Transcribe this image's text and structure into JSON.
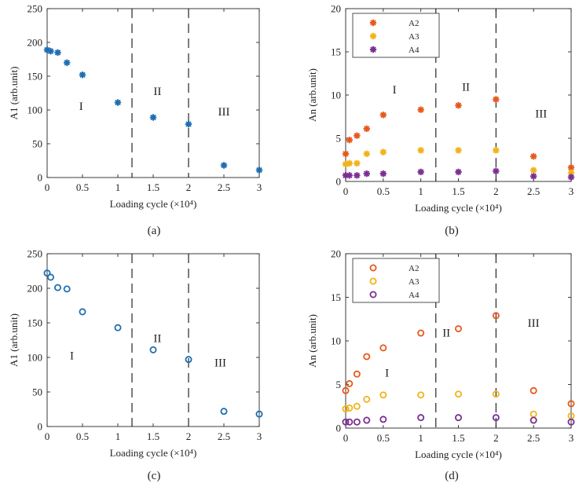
{
  "figure": {
    "panel_labels": [
      "(a)",
      "(b)",
      "(c)",
      "(d)"
    ]
  },
  "chart_data": [
    {
      "type": "scatter",
      "panel": "(a)",
      "xlabel": "Loading cycle (×10⁴)",
      "ylabel": "A1 (arb.unit)",
      "xlim": [
        0,
        3
      ],
      "ylim": [
        0,
        250
      ],
      "xticks": [
        0,
        0.5,
        1,
        1.5,
        2,
        2.5,
        3
      ],
      "xtick_labels": [
        "0",
        "0.5",
        "1",
        "1.5",
        "2",
        "2.5",
        "3"
      ],
      "yticks": [
        0,
        50,
        100,
        150,
        200,
        250
      ],
      "ytick_labels": [
        "0",
        "50",
        "100",
        "150",
        "200",
        "250"
      ],
      "marker": "asterisk",
      "grid": false,
      "dividers_x": [
        1.2,
        2
      ],
      "region_labels": [
        {
          "text": "I",
          "x": 0.48,
          "y": 100
        },
        {
          "text": "II",
          "x": 1.56,
          "y": 122
        },
        {
          "text": "III",
          "x": 2.5,
          "y": 92
        }
      ],
      "series": [
        {
          "color": "#1f6fb2",
          "x": [
            0,
            0.05,
            0.15,
            0.28,
            0.5,
            1.0,
            1.5,
            2.0,
            2.5,
            3.0
          ],
          "y": [
            189,
            187,
            185,
            170,
            152,
            111,
            89,
            79,
            18,
            11
          ]
        }
      ]
    },
    {
      "type": "scatter",
      "panel": "(b)",
      "xlabel": "Loading cycle (×10⁴)",
      "ylabel": "An (arb.unit)",
      "xlim": [
        0,
        3
      ],
      "ylim": [
        0,
        20
      ],
      "xticks": [
        0,
        0.5,
        1,
        1.5,
        2,
        2.5,
        3
      ],
      "xtick_labels": [
        "0",
        "0.5",
        "1",
        "1.5",
        "2",
        "2.5",
        "3"
      ],
      "yticks": [
        0,
        5,
        10,
        15,
        20
      ],
      "ytick_labels": [
        "0",
        "5",
        "10",
        "15",
        "20"
      ],
      "marker": "asterisk",
      "grid": false,
      "legend": "top-left",
      "dividers_x": [
        1.2,
        2
      ],
      "region_labels": [
        {
          "text": "I",
          "x": 0.65,
          "y": 10.2
        },
        {
          "text": "II",
          "x": 1.6,
          "y": 10.5
        },
        {
          "text": "III",
          "x": 2.6,
          "y": 7.4
        }
      ],
      "series": [
        {
          "name": "A2",
          "color": "#e8581c",
          "x": [
            0,
            0.05,
            0.15,
            0.28,
            0.5,
            1.0,
            1.5,
            2.0,
            2.5,
            3.0
          ],
          "y": [
            3.2,
            4.8,
            5.3,
            6.1,
            7.7,
            8.3,
            8.8,
            9.5,
            2.9,
            1.6
          ]
        },
        {
          "name": "A3",
          "color": "#f2b21a",
          "x": [
            0,
            0.05,
            0.15,
            0.28,
            0.5,
            1.0,
            1.5,
            2.0,
            2.5,
            3.0
          ],
          "y": [
            2.0,
            2.1,
            2.1,
            3.2,
            3.4,
            3.6,
            3.6,
            3.6,
            1.3,
            1.0
          ]
        },
        {
          "name": "A4",
          "color": "#7b2f93",
          "x": [
            0,
            0.05,
            0.15,
            0.28,
            0.5,
            1.0,
            1.5,
            2.0,
            2.5,
            3.0
          ],
          "y": [
            0.7,
            0.7,
            0.7,
            0.9,
            0.9,
            1.1,
            1.1,
            1.2,
            0.6,
            0.5
          ]
        }
      ]
    },
    {
      "type": "scatter",
      "panel": "(c)",
      "xlabel": "Loading cycle (×10⁴)",
      "ylabel": "A1 (arb.unit)",
      "xlim": [
        0,
        3
      ],
      "ylim": [
        0,
        250
      ],
      "xticks": [
        0,
        0.5,
        1,
        1.5,
        2,
        2.5,
        3
      ],
      "xtick_labels": [
        "0",
        "0.5",
        "1",
        "1.5",
        "2",
        "2.5",
        "3"
      ],
      "yticks": [
        0,
        50,
        100,
        150,
        200,
        250
      ],
      "ytick_labels": [
        "0",
        "50",
        "100",
        "150",
        "200",
        "250"
      ],
      "marker": "circle",
      "grid": false,
      "dividers_x": [
        1.2,
        2
      ],
      "region_labels": [
        {
          "text": "I",
          "x": 0.35,
          "y": 97
        },
        {
          "text": "II",
          "x": 1.56,
          "y": 122
        },
        {
          "text": "III",
          "x": 2.45,
          "y": 87
        }
      ],
      "series": [
        {
          "color": "#1f6fb2",
          "x": [
            0,
            0.05,
            0.15,
            0.28,
            0.5,
            1.0,
            1.5,
            2.0,
            2.5,
            3.0
          ],
          "y": [
            222,
            216,
            201,
            199,
            166,
            143,
            111,
            97,
            22,
            18
          ]
        }
      ]
    },
    {
      "type": "scatter",
      "panel": "(d)",
      "xlabel": "Loading cycle (×10⁴)",
      "ylabel": "An (arb.unit)",
      "xlim": [
        0,
        3
      ],
      "ylim": [
        0,
        20
      ],
      "xticks": [
        0,
        0.5,
        1,
        1.5,
        2,
        2.5,
        3
      ],
      "xtick_labels": [
        "0",
        "0.5",
        "1",
        "1.5",
        "2",
        "2.5",
        "3"
      ],
      "yticks": [
        0,
        5,
        10,
        15,
        20
      ],
      "ytick_labels": [
        "0",
        "5",
        "10",
        "15",
        "20"
      ],
      "marker": "circle",
      "grid": false,
      "legend": "top-left",
      "dividers_x": [
        1.2,
        2
      ],
      "region_labels": [
        {
          "text": "I",
          "x": 0.55,
          "y": 5.9
        },
        {
          "text": "II",
          "x": 1.34,
          "y": 10.5
        },
        {
          "text": "III",
          "x": 2.5,
          "y": 11.6
        }
      ],
      "series": [
        {
          "name": "A2",
          "color": "#e8581c",
          "x": [
            0,
            0.05,
            0.15,
            0.28,
            0.5,
            1.0,
            1.5,
            2.0,
            2.5,
            3.0
          ],
          "y": [
            4.3,
            5.1,
            6.2,
            8.2,
            9.2,
            10.9,
            11.4,
            12.9,
            4.3,
            2.8
          ]
        },
        {
          "name": "A3",
          "color": "#f2b21a",
          "x": [
            0,
            0.05,
            0.15,
            0.28,
            0.5,
            1.0,
            1.5,
            2.0,
            2.5,
            3.0
          ],
          "y": [
            2.2,
            2.3,
            2.5,
            3.3,
            3.8,
            3.8,
            3.9,
            3.9,
            1.6,
            1.4
          ]
        },
        {
          "name": "A4",
          "color": "#7b2f93",
          "x": [
            0,
            0.05,
            0.15,
            0.28,
            0.5,
            1.0,
            1.5,
            2.0,
            2.5,
            3.0
          ],
          "y": [
            0.7,
            0.7,
            0.7,
            0.9,
            1.0,
            1.2,
            1.2,
            1.2,
            0.9,
            0.7
          ]
        }
      ]
    }
  ]
}
